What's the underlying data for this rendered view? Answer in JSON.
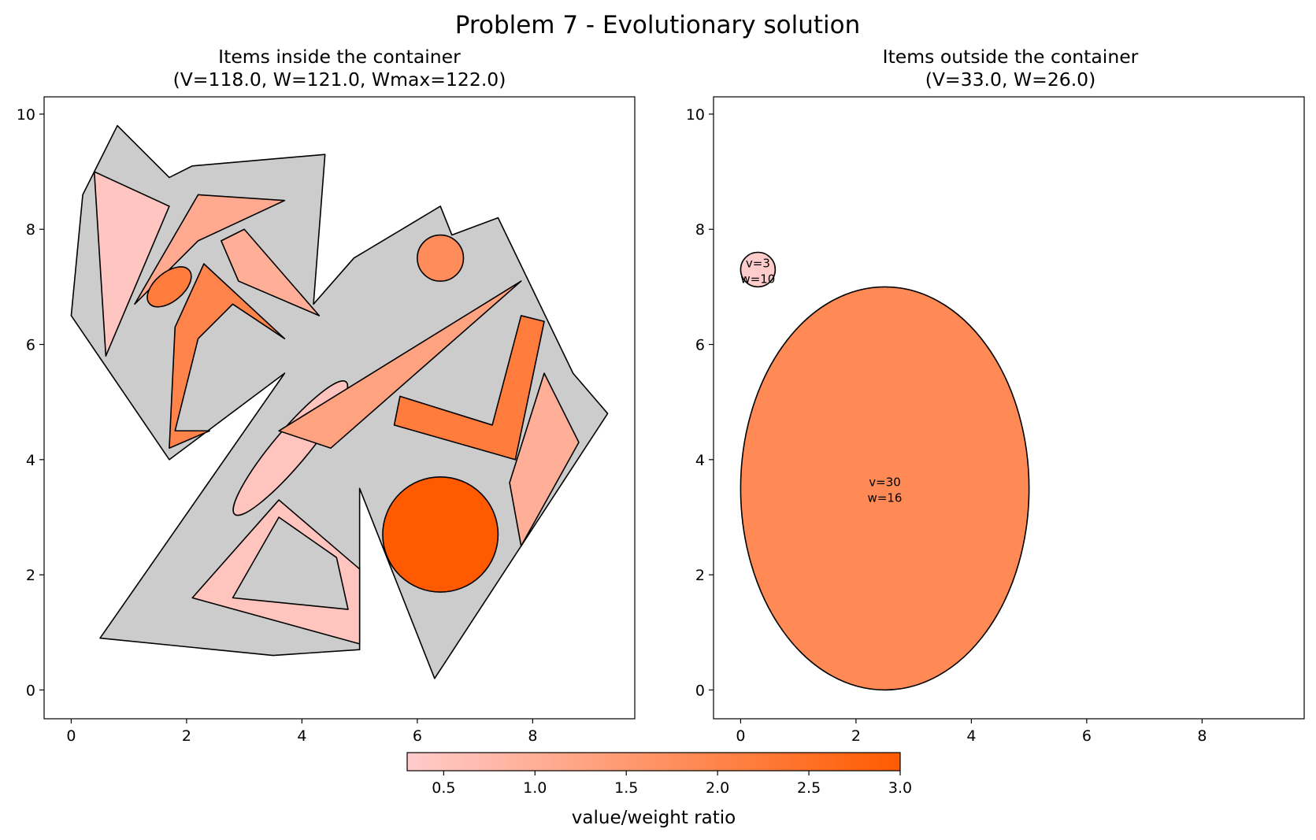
{
  "figure": {
    "suptitle": "Problem 7 - Evolutionary solution"
  },
  "chart_data": [
    {
      "type": "polygon-packing",
      "title_line1": "Items inside the container",
      "title_line2": "(V=118.0, W=121.0, Wmax=122.0)",
      "xlim": [
        -0.47,
        9.77
      ],
      "ylim": [
        -0.5,
        10.3
      ],
      "xticks": [
        0,
        2,
        4,
        6,
        8
      ],
      "yticks": [
        0,
        2,
        4,
        6,
        8,
        10
      ],
      "container": {
        "color": "#cccccc",
        "points": [
          [
            0.5,
            0.9
          ],
          [
            3.5,
            0.6
          ],
          [
            5,
            0.7
          ],
          [
            5,
            3.5
          ],
          [
            6.3,
            0.2
          ],
          [
            7.8,
            2.5
          ],
          [
            9.3,
            4.8
          ],
          [
            8.7,
            5.5
          ],
          [
            7.4,
            8.2
          ],
          [
            6.6,
            7.9
          ],
          [
            6.4,
            8.4
          ],
          [
            4.9,
            7.5
          ],
          [
            4.2,
            6.7
          ],
          [
            4.4,
            9.3
          ],
          [
            2.1,
            9.1
          ],
          [
            1.7,
            8.9
          ],
          [
            0.8,
            9.8
          ],
          [
            0.2,
            8.6
          ],
          [
            0,
            6.5
          ],
          [
            1.7,
            4
          ],
          [
            3.7,
            5.5
          ]
        ]
      },
      "items": [
        {
          "kind": "polygon",
          "ratio": 0.45,
          "points": [
            [
              0.4,
              9.0
            ],
            [
              1.7,
              8.4
            ],
            [
              0.6,
              5.8
            ]
          ]
        },
        {
          "kind": "polygon",
          "ratio": 1.1,
          "points": [
            [
              1.1,
              6.7
            ],
            [
              2.2,
              8.6
            ],
            [
              3.7,
              8.5
            ],
            [
              2.2,
              7.8
            ]
          ]
        },
        {
          "kind": "polygon",
          "ratio": 1.0,
          "points": [
            [
              2.6,
              7.8
            ],
            [
              3.0,
              8.0
            ],
            [
              4.3,
              6.5
            ],
            [
              2.9,
              7.1
            ]
          ]
        },
        {
          "kind": "ellipse",
          "ratio": 2.2,
          "center": [
            1.7,
            7.0
          ],
          "rx": 0.45,
          "ry": 0.25,
          "angle": 40
        },
        {
          "kind": "polygon",
          "ratio": 2.0,
          "points": [
            [
              1.7,
              4.2
            ],
            [
              1.8,
              6.3
            ],
            [
              2.3,
              7.4
            ],
            [
              3.7,
              6.1
            ],
            [
              2.8,
              6.7
            ],
            [
              2.2,
              6.1
            ],
            [
              1.8,
              4.5
            ],
            [
              2.4,
              4.5
            ]
          ]
        },
        {
          "kind": "ellipse",
          "ratio": 0.5,
          "center": [
            3.8,
            4.2
          ],
          "rx": 1.5,
          "ry": 0.3,
          "angle": 50
        },
        {
          "kind": "polygon",
          "ratio": 1.3,
          "points": [
            [
              3.6,
              4.5
            ],
            [
              7.8,
              7.1
            ],
            [
              4.5,
              4.2
            ]
          ]
        },
        {
          "kind": "circle",
          "ratio": 1.8,
          "center": [
            6.4,
            7.5
          ],
          "r": 0.4
        },
        {
          "kind": "polygon",
          "ratio": 2.2,
          "points": [
            [
              5.6,
              4.6
            ],
            [
              5.7,
              5.1
            ],
            [
              7.3,
              4.6
            ],
            [
              7.8,
              6.5
            ],
            [
              8.2,
              6.4
            ],
            [
              7.7,
              4.0
            ]
          ]
        },
        {
          "kind": "polygon",
          "ratio": 1.0,
          "points": [
            [
              7.6,
              3.6
            ],
            [
              8.2,
              5.5
            ],
            [
              8.8,
              4.3
            ],
            [
              7.8,
              2.5
            ]
          ]
        },
        {
          "kind": "circle",
          "ratio": 3.0,
          "center": [
            6.4,
            2.7
          ],
          "r": 1.0
        },
        {
          "kind": "polygon",
          "ratio": 0.5,
          "points": [
            [
              2.1,
              1.6
            ],
            [
              3.6,
              3.3
            ],
            [
              5,
              2.1
            ],
            [
              5,
              0.8
            ]
          ]
        },
        {
          "kind": "hole",
          "points": [
            [
              2.8,
              1.6
            ],
            [
              3.6,
              3.0
            ],
            [
              4.6,
              2.3
            ],
            [
              4.8,
              1.4
            ]
          ]
        }
      ]
    },
    {
      "type": "polygon-packing",
      "title_line1": "Items outside the container",
      "title_line2": "(V=33.0, W=26.0)",
      "xlim": [
        -0.47,
        9.77
      ],
      "ylim": [
        -0.5,
        10.3
      ],
      "xticks": [
        0,
        2,
        4,
        6,
        8
      ],
      "yticks": [
        0,
        2,
        4,
        6,
        8,
        10
      ],
      "items": [
        {
          "kind": "circle",
          "ratio": 0.3,
          "center": [
            0.3,
            7.3
          ],
          "r": 0.3,
          "label_v": "v=3",
          "label_w": "w=10"
        },
        {
          "kind": "ellipse",
          "ratio": 1.875,
          "center": [
            2.5,
            3.5
          ],
          "rx": 2.5,
          "ry": 3.5,
          "angle": 0,
          "label_v": "v=30",
          "label_w": "w=16"
        }
      ]
    }
  ],
  "colorbar": {
    "label": "value/weight ratio",
    "min": 0.3,
    "max": 3.0,
    "ticks": [
      "0.5",
      "1.0",
      "1.5",
      "2.0",
      "2.5",
      "3.0"
    ],
    "color_low": "#ffcccc",
    "color_high": "#ff5a00"
  }
}
